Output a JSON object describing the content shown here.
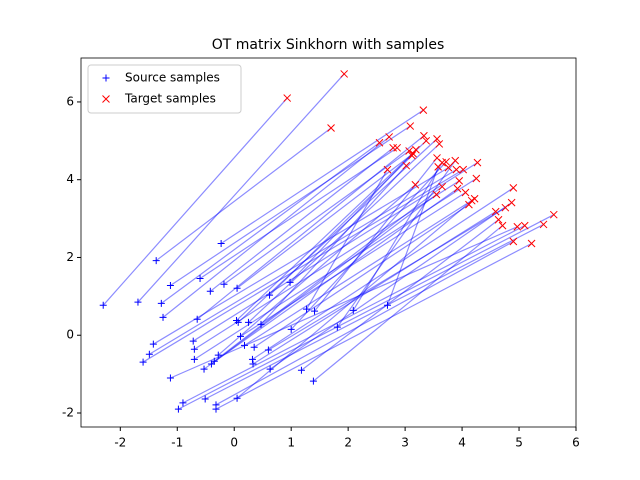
{
  "chart_data": {
    "type": "scatter",
    "title": "OT matrix Sinkhorn with samples",
    "xlim": [
      -2.69,
      6.0
    ],
    "ylim": [
      -2.36,
      7.13
    ],
    "xticks": [
      -2,
      -1,
      0,
      1,
      2,
      3,
      4,
      5,
      6
    ],
    "yticks": [
      -2,
      0,
      2,
      4,
      6
    ],
    "legend": "upper left",
    "link_color": "#0000ff",
    "series": [
      {
        "name": "Source samples",
        "color": "#0000ff",
        "marker": "+",
        "x": [
          -2.3,
          -1.37,
          -1.69,
          -0.23,
          -1.12,
          -1.28,
          -1.25,
          -0.6,
          -0.42,
          -0.18,
          0.05,
          0.62,
          0.98,
          -0.65,
          0.04,
          0.07,
          0.25,
          0.47,
          1.27,
          1.41,
          2.09,
          2.69,
          1.0,
          1.81,
          -1.42,
          -1.49,
          -1.6,
          -0.72,
          -0.7,
          -0.7,
          -0.28,
          -0.35,
          -0.4,
          -0.53,
          0.11,
          0.18,
          0.35,
          0.32,
          0.33,
          0.6,
          0.63,
          1.18,
          1.39,
          -1.12,
          -0.9,
          -0.98,
          -0.51,
          -0.32,
          -0.32,
          0.05
        ],
        "y": [
          0.77,
          1.92,
          0.85,
          2.36,
          1.28,
          0.82,
          0.46,
          1.46,
          1.13,
          1.31,
          1.21,
          1.03,
          1.36,
          0.41,
          0.38,
          0.33,
          0.33,
          0.28,
          0.67,
          0.62,
          0.64,
          0.77,
          0.15,
          0.21,
          -0.23,
          -0.49,
          -0.69,
          -0.15,
          -0.36,
          -0.62,
          -0.51,
          -0.67,
          -0.74,
          -0.87,
          -0.03,
          -0.26,
          -0.31,
          -0.62,
          -0.74,
          -0.38,
          -0.87,
          -0.9,
          -1.18,
          -1.1,
          -1.74,
          -1.9,
          -1.64,
          -1.79,
          -1.9,
          -1.62
        ]
      },
      {
        "name": "Target samples",
        "color": "#ff0000",
        "marker": "x",
        "x": [
          0.93,
          1.7,
          1.93,
          3.32,
          3.09,
          2.55,
          2.72,
          2.86,
          2.79,
          3.07,
          3.14,
          3.12,
          3.19,
          3.33,
          3.37,
          3.56,
          3.6,
          3.02,
          2.69,
          3.56,
          3.65,
          3.58,
          3.72,
          3.88,
          3.76,
          3.9,
          4.02,
          4.27,
          3.95,
          4.25,
          3.18,
          3.65,
          3.55,
          3.92,
          4.06,
          4.22,
          4.12,
          4.9,
          4.59,
          4.76,
          4.87,
          4.64,
          4.71,
          4.97,
          5.1,
          5.61,
          5.43,
          4.9,
          5.22,
          4.17
        ],
        "y": [
          6.1,
          5.33,
          6.72,
          5.79,
          5.38,
          4.95,
          5.1,
          4.82,
          4.82,
          4.74,
          4.67,
          4.62,
          4.77,
          5.13,
          5.0,
          5.05,
          4.92,
          4.36,
          4.26,
          4.56,
          4.44,
          4.33,
          4.46,
          4.49,
          4.31,
          4.26,
          4.26,
          4.44,
          3.97,
          4.03,
          3.87,
          3.82,
          3.62,
          3.77,
          3.67,
          3.51,
          3.36,
          3.79,
          3.18,
          3.28,
          3.41,
          2.97,
          2.82,
          2.79,
          2.82,
          3.1,
          2.85,
          2.41,
          2.36,
          3.46
        ]
      }
    ]
  }
}
